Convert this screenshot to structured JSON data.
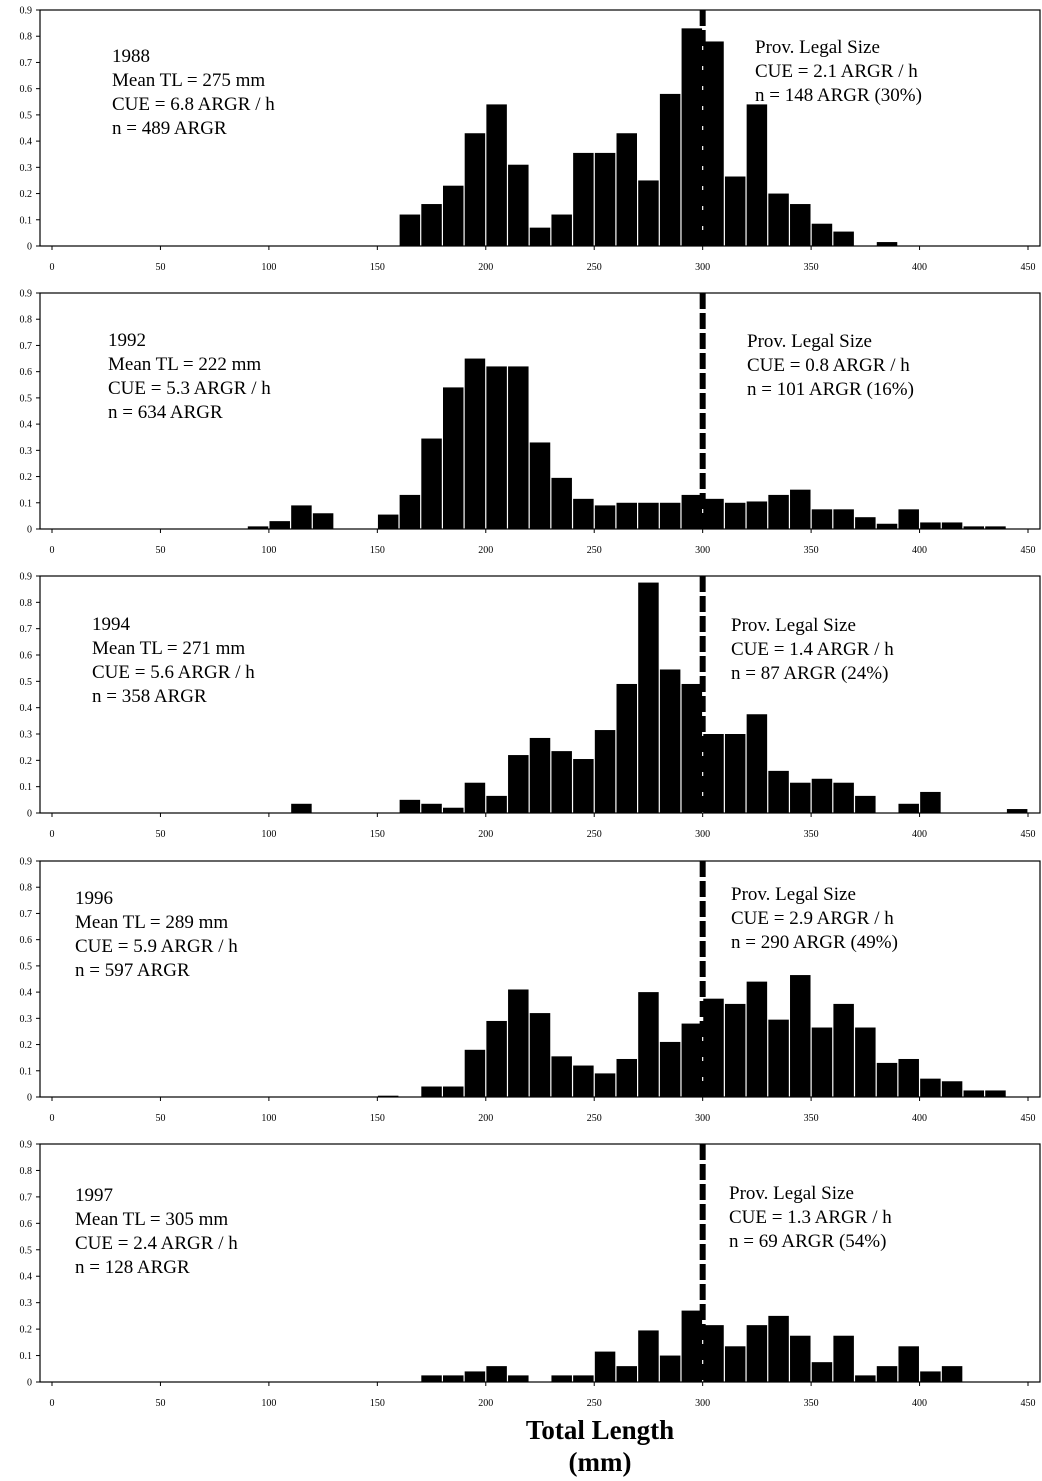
{
  "figure": {
    "xlabel_line1": "Total Length",
    "xlabel_line2": "(mm)"
  },
  "chart_data": [
    {
      "type": "bar",
      "xlim": [
        0,
        450
      ],
      "ylim": [
        0,
        0.9
      ],
      "xticks": [
        "0",
        "50",
        "100",
        "150",
        "200",
        "250",
        "300",
        "350",
        "400",
        "450"
      ],
      "yticks": [
        "0",
        "0.1",
        "0.2",
        "0.3",
        "0.4",
        "0.5",
        "0.6",
        "0.7",
        "0.8",
        "0.9"
      ],
      "legal_size_line": 300,
      "bin_starts": [
        160,
        170,
        180,
        190,
        200,
        210,
        220,
        230,
        240,
        250,
        260,
        270,
        280,
        290,
        300,
        310,
        320,
        330,
        340,
        350,
        360,
        380
      ],
      "values": [
        0.12,
        0.16,
        0.23,
        0.43,
        0.54,
        0.31,
        0.07,
        0.12,
        0.355,
        0.355,
        0.43,
        0.25,
        0.58,
        0.83,
        0.78,
        0.265,
        0.54,
        0.2,
        0.16,
        0.085,
        0.055,
        0.015
      ],
      "annotation_left": [
        "1988",
        "Mean TL = 275 mm",
        "CUE = 6.8 ARGR / h",
        "n = 489 ARGR"
      ],
      "annotation_right": [
        "Prov. Legal Size",
        "CUE = 2.1 ARGR / h",
        "n = 148 ARGR (30%)"
      ]
    },
    {
      "type": "bar",
      "xlim": [
        0,
        450
      ],
      "ylim": [
        0,
        0.9
      ],
      "xticks": [
        "0",
        "50",
        "100",
        "150",
        "200",
        "250",
        "300",
        "350",
        "400",
        "450"
      ],
      "yticks": [
        "0",
        "0.1",
        "0.2",
        "0.3",
        "0.4",
        "0.5",
        "0.6",
        "0.7",
        "0.8",
        "0.9"
      ],
      "legal_size_line": 300,
      "bin_starts": [
        90,
        100,
        110,
        120,
        150,
        160,
        170,
        180,
        190,
        200,
        210,
        220,
        230,
        240,
        250,
        260,
        270,
        280,
        290,
        300,
        310,
        320,
        330,
        340,
        350,
        360,
        370,
        380,
        390,
        400,
        410,
        420,
        430
      ],
      "values": [
        0.01,
        0.03,
        0.09,
        0.06,
        0.055,
        0.13,
        0.345,
        0.54,
        0.65,
        0.62,
        0.62,
        0.33,
        0.195,
        0.115,
        0.09,
        0.1,
        0.1,
        0.1,
        0.13,
        0.115,
        0.1,
        0.105,
        0.13,
        0.15,
        0.075,
        0.075,
        0.045,
        0.02,
        0.075,
        0.025,
        0.025,
        0.01,
        0.01
      ],
      "annotation_left": [
        "1992",
        "Mean TL = 222 mm",
        "CUE = 5.3 ARGR / h",
        "n = 634 ARGR"
      ],
      "annotation_right": [
        "Prov. Legal Size",
        "CUE = 0.8 ARGR / h",
        "n = 101 ARGR (16%)"
      ]
    },
    {
      "type": "bar",
      "xlim": [
        0,
        450
      ],
      "ylim": [
        0,
        0.9
      ],
      "xticks": [
        "0",
        "50",
        "100",
        "150",
        "200",
        "250",
        "300",
        "350",
        "400",
        "450"
      ],
      "yticks": [
        "0",
        "0.1",
        "0.2",
        "0.3",
        "0.4",
        "0.5",
        "0.6",
        "0.7",
        "0.8",
        "0.9"
      ],
      "legal_size_line": 300,
      "bin_starts": [
        110,
        160,
        170,
        180,
        190,
        200,
        210,
        220,
        230,
        240,
        250,
        260,
        270,
        280,
        290,
        300,
        310,
        320,
        330,
        340,
        350,
        360,
        370,
        390,
        400,
        440
      ],
      "values": [
        0.035,
        0.05,
        0.035,
        0.02,
        0.115,
        0.065,
        0.22,
        0.285,
        0.235,
        0.205,
        0.315,
        0.49,
        0.875,
        0.545,
        0.49,
        0.3,
        0.3,
        0.375,
        0.16,
        0.115,
        0.13,
        0.115,
        0.065,
        0.035,
        0.08,
        0.015
      ],
      "annotation_left": [
        "1994",
        "Mean TL = 271 mm",
        "CUE = 5.6 ARGR / h",
        "n = 358 ARGR"
      ],
      "annotation_right": [
        "Prov. Legal Size",
        "CUE = 1.4 ARGR / h",
        "n = 87 ARGR (24%)"
      ]
    },
    {
      "type": "bar",
      "xlim": [
        0,
        450
      ],
      "ylim": [
        0,
        0.9
      ],
      "xticks": [
        "0",
        "50",
        "100",
        "150",
        "200",
        "250",
        "300",
        "350",
        "400",
        "450"
      ],
      "yticks": [
        "0",
        "0.1",
        "0.2",
        "0.3",
        "0.4",
        "0.5",
        "0.6",
        "0.7",
        "0.8",
        "0.9"
      ],
      "legal_size_line": 300,
      "bin_starts": [
        150,
        170,
        180,
        190,
        200,
        210,
        220,
        230,
        240,
        250,
        260,
        270,
        280,
        290,
        300,
        310,
        320,
        330,
        340,
        350,
        360,
        370,
        380,
        390,
        400,
        410,
        420,
        430
      ],
      "values": [
        0.005,
        0.04,
        0.04,
        0.18,
        0.29,
        0.41,
        0.32,
        0.155,
        0.12,
        0.09,
        0.145,
        0.4,
        0.21,
        0.28,
        0.375,
        0.355,
        0.44,
        0.295,
        0.465,
        0.265,
        0.355,
        0.265,
        0.13,
        0.145,
        0.07,
        0.06,
        0.025,
        0.025
      ],
      "annotation_left": [
        "1996",
        "Mean TL = 289 mm",
        "CUE = 5.9 ARGR / h",
        "n = 597 ARGR"
      ],
      "annotation_right": [
        "Prov. Legal Size",
        "CUE = 2.9 ARGR / h",
        "n = 290 ARGR (49%)"
      ]
    },
    {
      "type": "bar",
      "xlim": [
        0,
        450
      ],
      "ylim": [
        0,
        0.9
      ],
      "xticks": [
        "0",
        "50",
        "100",
        "150",
        "200",
        "250",
        "300",
        "350",
        "400",
        "450"
      ],
      "yticks": [
        "0",
        "0.1",
        "0.2",
        "0.3",
        "0.4",
        "0.5",
        "0.6",
        "0.7",
        "0.8",
        "0.9"
      ],
      "legal_size_line": 300,
      "bin_starts": [
        170,
        180,
        190,
        200,
        210,
        230,
        240,
        250,
        260,
        270,
        280,
        290,
        300,
        310,
        320,
        330,
        340,
        350,
        360,
        370,
        380,
        390,
        400,
        410
      ],
      "values": [
        0.025,
        0.025,
        0.04,
        0.06,
        0.025,
        0.025,
        0.025,
        0.115,
        0.06,
        0.195,
        0.1,
        0.27,
        0.215,
        0.135,
        0.215,
        0.25,
        0.175,
        0.075,
        0.175,
        0.025,
        0.06,
        0.135,
        0.04,
        0.06
      ],
      "annotation_left": [
        "1997",
        "Mean TL = 305 mm",
        "CUE = 2.4 ARGR / h",
        "n = 128 ARGR"
      ],
      "annotation_right": [
        "Prov. Legal Size",
        "CUE = 1.3 ARGR / h",
        "n = 69 ARGR (54%)"
      ]
    }
  ]
}
